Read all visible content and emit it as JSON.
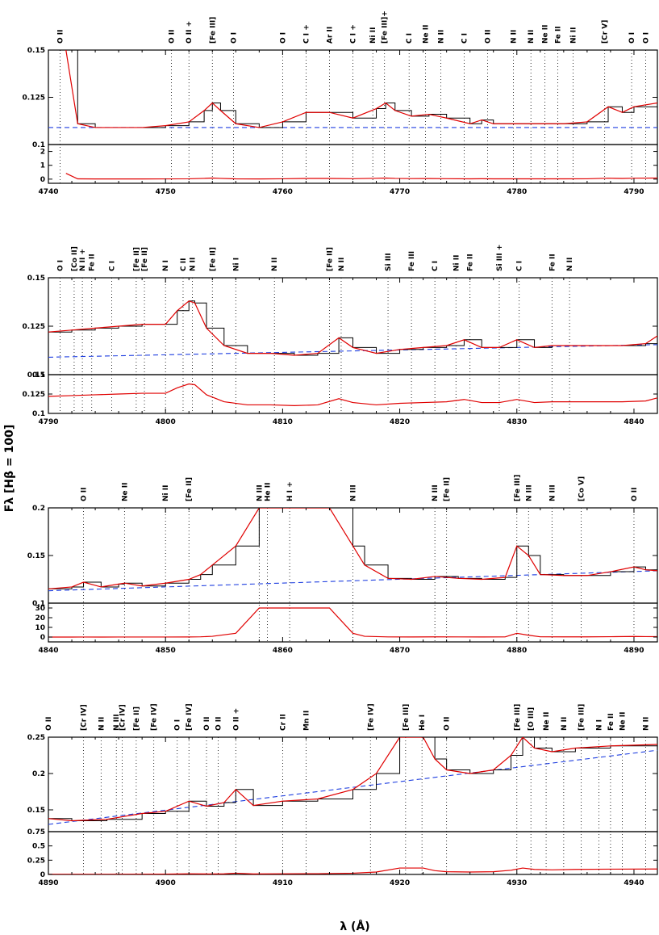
{
  "xlabel": "λ (Å)",
  "ylabel": "Fλ [Hβ = 100]",
  "colors": {
    "observed": "#000000",
    "model": "#e00000",
    "continuum": "#1f3fe0"
  },
  "chart_data": [
    {
      "type": "line",
      "xlim": [
        4740,
        4792
      ],
      "x_ticks": [
        "4740",
        "4750",
        "4760",
        "4770",
        "4780",
        "4790"
      ],
      "top": {
        "ylim": [
          0.1,
          0.15
        ],
        "y_ticks": [
          "0.1",
          "0.125",
          "0.15"
        ]
      },
      "bottom": {
        "ylim": [
          -0.3,
          2.5
        ],
        "y_ticks": [
          "0",
          "1",
          "2"
        ]
      },
      "continuum": [
        0.109,
        0.109
      ],
      "series": [
        {
          "x": [
            4741.5,
            4742.5,
            4744,
            4746,
            4748,
            4750,
            4752,
            4753.3,
            4754,
            4754.7,
            4756,
            4758,
            4760,
            4762,
            4764,
            4766,
            4768,
            4768.8,
            4769.6,
            4771,
            4772.5,
            4774,
            4776,
            4777,
            4778,
            4780,
            4782,
            4784,
            4786,
            4787.8,
            4789,
            4790,
            4792
          ],
          "y": [
            0.15,
            0.111,
            0.109,
            0.109,
            0.109,
            0.11,
            0.112,
            0.118,
            0.122,
            0.118,
            0.111,
            0.109,
            0.112,
            0.117,
            0.117,
            0.114,
            0.119,
            0.122,
            0.118,
            0.115,
            0.116,
            0.114,
            0.111,
            0.113,
            0.111,
            0.111,
            0.111,
            0.111,
            0.112,
            0.12,
            0.117,
            0.12,
            0.122
          ]
        }
      ],
      "lines": [
        {
          "x": 4741.0,
          "label": "O II"
        },
        {
          "x": 4750.5,
          "label": "O II"
        },
        {
          "x": 4752.0,
          "label": "O II +"
        },
        {
          "x": 4754.0,
          "label": "[Fe III]"
        },
        {
          "x": 4755.8,
          "label": "O I"
        },
        {
          "x": 4760.0,
          "label": "O I"
        },
        {
          "x": 4762.0,
          "label": "C I +"
        },
        {
          "x": 4764.0,
          "label": "Ar II"
        },
        {
          "x": 4766.0,
          "label": "C I +"
        },
        {
          "x": 4767.7,
          "label": "Ni II"
        },
        {
          "x": 4768.7,
          "label": "[Fe III]+"
        },
        {
          "x": 4770.8,
          "label": "C I"
        },
        {
          "x": 4772.2,
          "label": "Ne II"
        },
        {
          "x": 4773.5,
          "label": "N II"
        },
        {
          "x": 4775.5,
          "label": "C I"
        },
        {
          "x": 4777.5,
          "label": "O II"
        },
        {
          "x": 4779.7,
          "label": "N II"
        },
        {
          "x": 4781.2,
          "label": "N II"
        },
        {
          "x": 4782.4,
          "label": "Ne II"
        },
        {
          "x": 4783.5,
          "label": "Fe II"
        },
        {
          "x": 4784.8,
          "label": "Ni II"
        },
        {
          "x": 4787.5,
          "label": "[Cr V]"
        },
        {
          "x": 4789.8,
          "label": "O I"
        },
        {
          "x": 4791.0,
          "label": "O I"
        }
      ]
    },
    {
      "type": "line",
      "xlim": [
        4790,
        4842
      ],
      "x_ticks": [
        "4790",
        "4800",
        "4810",
        "4820",
        "4830",
        "4840"
      ],
      "top": {
        "ylim": [
          0.1,
          0.15
        ],
        "y_ticks": [
          "0.1",
          "0.125",
          "0.15"
        ]
      },
      "bottom": {
        "ylim": [
          0.1,
          0.15
        ],
        "y_ticks": [
          "0.1",
          "0.125",
          "0.15"
        ]
      },
      "continuum": [
        0.109,
        0.1155
      ],
      "series": [
        {
          "x": [
            4790,
            4792,
            4794,
            4796,
            4798,
            4800,
            4801,
            4802,
            4802.5,
            4803.5,
            4805,
            4807,
            4809,
            4811,
            4813,
            4814.8,
            4816,
            4818,
            4820,
            4822,
            4824,
            4825.5,
            4827,
            4828.5,
            4830,
            4831.5,
            4833,
            4835,
            4837,
            4839,
            4841,
            4842
          ],
          "y": [
            0.122,
            0.123,
            0.124,
            0.125,
            0.126,
            0.126,
            0.133,
            0.138,
            0.137,
            0.124,
            0.115,
            0.111,
            0.111,
            0.11,
            0.111,
            0.119,
            0.114,
            0.111,
            0.113,
            0.114,
            0.115,
            0.118,
            0.114,
            0.114,
            0.118,
            0.114,
            0.115,
            0.115,
            0.115,
            0.115,
            0.116,
            0.12
          ]
        }
      ],
      "lines": [
        {
          "x": 4791.0,
          "label": "O I"
        },
        {
          "x": 4792.2,
          "label": "[Co II]"
        },
        {
          "x": 4792.9,
          "label": "N II +"
        },
        {
          "x": 4793.7,
          "label": "Fe II"
        },
        {
          "x": 4795.4,
          "label": "C I"
        },
        {
          "x": 4797.5,
          "label": "[Fe II]"
        },
        {
          "x": 4798.2,
          "label": "[Fe II]"
        },
        {
          "x": 4800.0,
          "label": "N I"
        },
        {
          "x": 4801.5,
          "label": "C II"
        },
        {
          "x": 4802.3,
          "label": "N II"
        },
        {
          "x": 4804.0,
          "label": "[Fe II]"
        },
        {
          "x": 4806.0,
          "label": "Ni I"
        },
        {
          "x": 4809.3,
          "label": "N II"
        },
        {
          "x": 4814.0,
          "label": "[Fe II]"
        },
        {
          "x": 4815.0,
          "label": "N II"
        },
        {
          "x": 4819.0,
          "label": "Si III"
        },
        {
          "x": 4821.0,
          "label": "Fe III"
        },
        {
          "x": 4823.0,
          "label": "C I"
        },
        {
          "x": 4824.8,
          "label": "Ni II"
        },
        {
          "x": 4826.0,
          "label": "Fe II"
        },
        {
          "x": 4828.5,
          "label": "Si III +"
        },
        {
          "x": 4830.2,
          "label": "C I"
        },
        {
          "x": 4833.0,
          "label": "Fe II"
        },
        {
          "x": 4834.5,
          "label": "N II"
        }
      ]
    },
    {
      "type": "line",
      "xlim": [
        4840,
        4892
      ],
      "x_ticks": [
        "4840",
        "4850",
        "4860",
        "4870",
        "4880",
        "4890"
      ],
      "top": {
        "ylim": [
          0.1,
          0.2
        ],
        "y_ticks": [
          "0.1",
          "0.15",
          "0.2"
        ]
      },
      "bottom": {
        "ylim": [
          -5,
          35
        ],
        "y_ticks": [
          "0",
          "10",
          "20",
          "30"
        ]
      },
      "continuum": [
        0.113,
        0.134
      ],
      "series": [
        {
          "x": [
            4840,
            4842,
            4843,
            4844.5,
            4846,
            4846.5,
            4848,
            4850,
            4852,
            4853,
            4854,
            4856,
            4858,
            4860,
            4862,
            4864,
            4866,
            4867,
            4869,
            4871,
            4873,
            4875,
            4877,
            4879,
            4880,
            4881,
            4882,
            4884,
            4886,
            4888,
            4890,
            4891,
            4892
          ],
          "y": [
            0.115,
            0.117,
            0.122,
            0.117,
            0.12,
            0.121,
            0.118,
            0.121,
            0.125,
            0.13,
            0.14,
            0.16,
            0.2,
            0.2,
            0.2,
            0.2,
            0.16,
            0.14,
            0.126,
            0.125,
            0.128,
            0.126,
            0.125,
            0.127,
            0.16,
            0.15,
            0.13,
            0.129,
            0.129,
            0.133,
            0.138,
            0.135,
            0.134
          ]
        }
      ],
      "lines": [
        {
          "x": 4843.0,
          "label": "O II"
        },
        {
          "x": 4846.5,
          "label": "Ne II"
        },
        {
          "x": 4850.0,
          "label": "Ni II"
        },
        {
          "x": 4852.0,
          "label": "[Fe II]"
        },
        {
          "x": 4858.0,
          "label": "N III"
        },
        {
          "x": 4858.7,
          "label": "He II"
        },
        {
          "x": 4860.6,
          "label": "H I +"
        },
        {
          "x": 4866.0,
          "label": "N III"
        },
        {
          "x": 4873.0,
          "label": "N III"
        },
        {
          "x": 4874.0,
          "label": "[Fe II]"
        },
        {
          "x": 4880.0,
          "label": "[Fe III]"
        },
        {
          "x": 4881.0,
          "label": "N III"
        },
        {
          "x": 4883.0,
          "label": "N III"
        },
        {
          "x": 4885.5,
          "label": "[Co V]"
        },
        {
          "x": 4890.0,
          "label": "O II"
        }
      ]
    },
    {
      "type": "line",
      "xlim": [
        4890,
        4942
      ],
      "x_ticks": [
        "4890",
        "4900",
        "4910",
        "4920",
        "4930",
        "4940"
      ],
      "top": {
        "ylim": [
          0.12,
          0.25
        ],
        "y_ticks": [
          "0.15",
          "0.2",
          "0.25"
        ]
      },
      "bottom": {
        "ylim": [
          0,
          0.75
        ],
        "y_ticks": [
          "0",
          "0.25",
          "0.5",
          "0.75"
        ]
      },
      "continuum": [
        0.13,
        0.232
      ],
      "series": [
        {
          "x": [
            4890,
            4892,
            4895,
            4898,
            4900,
            4902,
            4903.5,
            4905,
            4906,
            4907.5,
            4910,
            4913,
            4916,
            4918,
            4920,
            4921,
            4922,
            4923,
            4924,
            4926,
            4928,
            4929.5,
            4930.5,
            4931.5,
            4933,
            4935,
            4938,
            4942
          ],
          "y": [
            0.138,
            0.135,
            0.137,
            0.145,
            0.148,
            0.162,
            0.155,
            0.16,
            0.178,
            0.156,
            0.162,
            0.165,
            0.178,
            0.2,
            0.25,
            0.25,
            0.25,
            0.22,
            0.205,
            0.2,
            0.205,
            0.225,
            0.25,
            0.235,
            0.23,
            0.235,
            0.238,
            0.24
          ]
        }
      ],
      "lines": [
        {
          "x": 4890.0,
          "label": "O II"
        },
        {
          "x": 4893.0,
          "label": "[Cr IV]"
        },
        {
          "x": 4894.5,
          "label": "N II"
        },
        {
          "x": 4895.8,
          "label": "N III"
        },
        {
          "x": 4896.3,
          "label": "[Cr IV]"
        },
        {
          "x": 4897.5,
          "label": "[Fe II]"
        },
        {
          "x": 4899.0,
          "label": "[Fe IV]"
        },
        {
          "x": 4901.0,
          "label": "O I"
        },
        {
          "x": 4902.0,
          "label": "[Fe IV]"
        },
        {
          "x": 4903.5,
          "label": "O II"
        },
        {
          "x": 4904.5,
          "label": "O II"
        },
        {
          "x": 4906.0,
          "label": "O II +"
        },
        {
          "x": 4910.0,
          "label": "Cr II"
        },
        {
          "x": 4912.0,
          "label": "Mn II"
        },
        {
          "x": 4917.5,
          "label": "[Fe IV]"
        },
        {
          "x": 4920.5,
          "label": "[Fe III]"
        },
        {
          "x": 4921.9,
          "label": "He I"
        },
        {
          "x": 4924.0,
          "label": "O II"
        },
        {
          "x": 4930.0,
          "label": "[Fe III]"
        },
        {
          "x": 4931.2,
          "label": "[O III]"
        },
        {
          "x": 4932.5,
          "label": "Ne II"
        },
        {
          "x": 4934.0,
          "label": "N II"
        },
        {
          "x": 4935.5,
          "label": "[Fe III]"
        },
        {
          "x": 4937.0,
          "label": "N I"
        },
        {
          "x": 4938.0,
          "label": "Fe II"
        },
        {
          "x": 4939.0,
          "label": "Ne II"
        },
        {
          "x": 4941.0,
          "label": "N II"
        }
      ]
    }
  ]
}
